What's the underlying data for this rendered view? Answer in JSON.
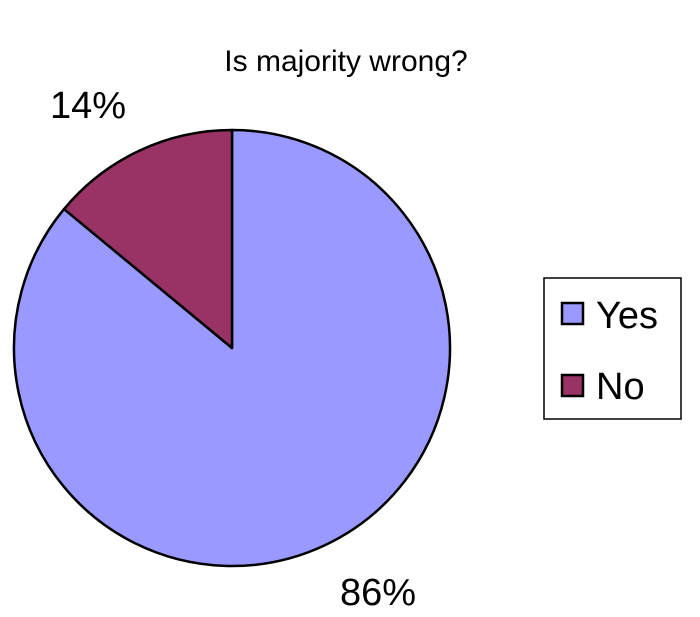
{
  "chart_data": {
    "type": "pie",
    "title": "Is majority wrong?",
    "slices": [
      {
        "label": "Yes",
        "value": 86,
        "display": "86%",
        "color": "#9999ff"
      },
      {
        "label": "No",
        "value": 14,
        "display": "14%",
        "color": "#993366"
      }
    ],
    "legend": {
      "position": "right",
      "entries": [
        "Yes",
        "No"
      ]
    }
  }
}
